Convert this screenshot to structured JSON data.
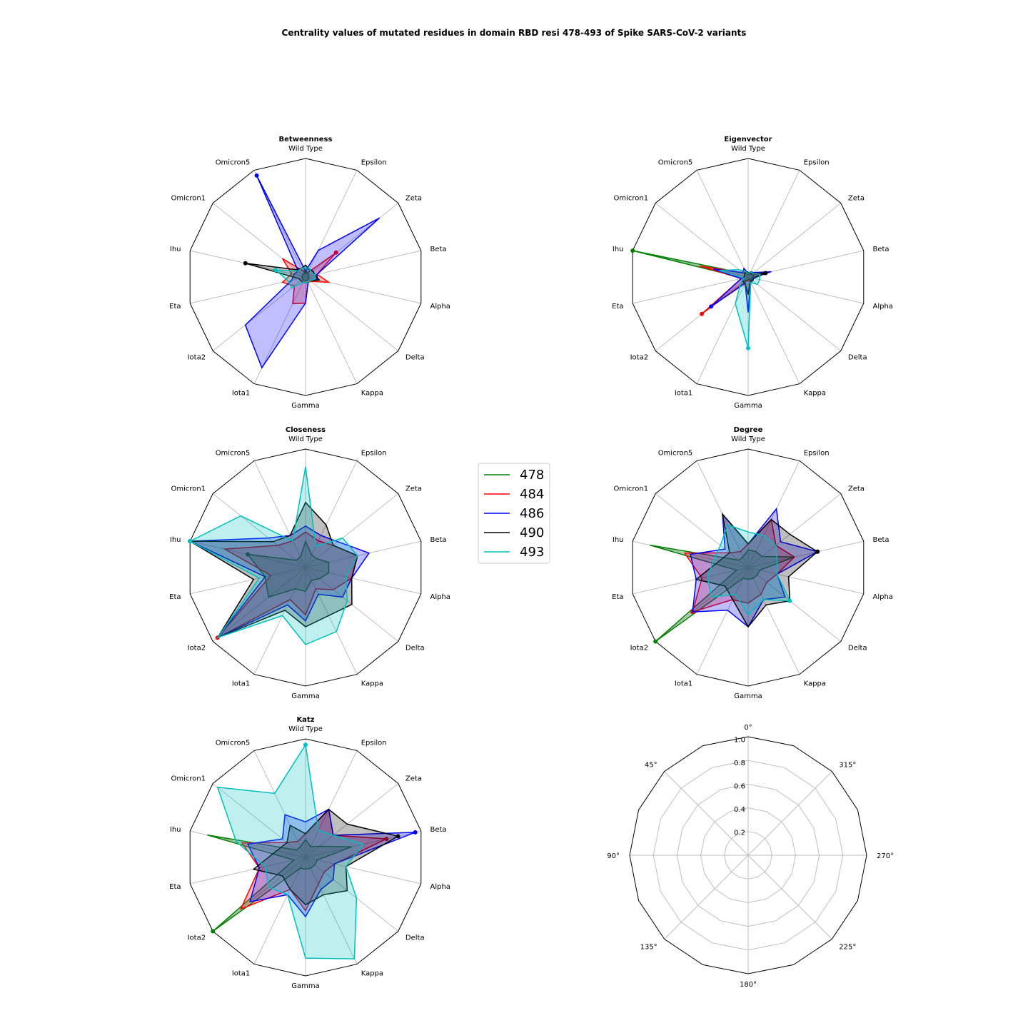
{
  "figure": {
    "title": "Centrality values of mutated residues in domain RBD resi 478-493 of Spike SARS-CoV-2 variants"
  },
  "axes": [
    "Wild Type",
    "Epsilon",
    "Zeta",
    "Beta",
    "Alpha",
    "Delta",
    "Kappa",
    "Gamma",
    "Iota1",
    "Iota2",
    "Eta",
    "Ihu",
    "Omicron1",
    "Omicron5"
  ],
  "colors": {
    "478": "#008000",
    "484": "#ff0000",
    "486": "#0000ff",
    "490": "#000000",
    "493": "#00bfbf"
  },
  "legend": {
    "entries": [
      {
        "label": "478",
        "color": "#008000"
      },
      {
        "label": "484",
        "color": "#ff0000"
      },
      {
        "label": "486",
        "color": "#0000ff"
      },
      {
        "label": "490",
        "color": "#000000"
      },
      {
        "label": "493",
        "color": "#00bfbf"
      }
    ]
  },
  "chart_data": [
    {
      "type": "radar",
      "title": "Betweenness",
      "rlim": [
        0,
        1
      ],
      "categories": [
        "Wild Type",
        "Epsilon",
        "Zeta",
        "Beta",
        "Alpha",
        "Delta",
        "Kappa",
        "Gamma",
        "Iota1",
        "Iota2",
        "Eta",
        "Ihu",
        "Omicron1",
        "Omicron5"
      ],
      "series": [
        {
          "name": "478",
          "values": [
            0.04,
            0.04,
            0.03,
            0.03,
            0.03,
            0.03,
            0.03,
            0.03,
            0.03,
            0.03,
            0.03,
            0.03,
            0.03,
            0.03
          ]
        },
        {
          "name": "484",
          "values": [
            0.05,
            0.04,
            0.33,
            0.1,
            0.2,
            0.06,
            0.05,
            0.22,
            0.25,
            0.12,
            0.2,
            0.12,
            0.25,
            0.06
          ]
        },
        {
          "name": "486",
          "values": [
            0.05,
            0.25,
            0.8,
            0.1,
            0.1,
            0.05,
            0.05,
            0.22,
            0.85,
            0.65,
            0.12,
            0.1,
            0.08,
            0.95
          ]
        },
        {
          "name": "490",
          "values": [
            0.1,
            0.07,
            0.08,
            0.08,
            0.12,
            0.05,
            0.05,
            0.05,
            0.05,
            0.05,
            0.06,
            0.52,
            0.1,
            0.08
          ]
        },
        {
          "name": "493",
          "values": [
            0.08,
            0.08,
            0.06,
            0.08,
            0.08,
            0.05,
            0.05,
            0.05,
            0.05,
            0.15,
            0.15,
            0.26,
            0.08,
            0.08
          ]
        }
      ]
    },
    {
      "type": "radar",
      "title": "Eigenvector",
      "rlim": [
        0,
        1
      ],
      "categories": [
        "Wild Type",
        "Epsilon",
        "Zeta",
        "Beta",
        "Alpha",
        "Delta",
        "Kappa",
        "Gamma",
        "Iota1",
        "Iota2",
        "Eta",
        "Ihu",
        "Omicron1",
        "Omicron5"
      ],
      "series": [
        {
          "name": "478",
          "values": [
            0.02,
            0.03,
            0.03,
            0.05,
            0.03,
            0.03,
            0.02,
            0.02,
            0.03,
            0.06,
            0.04,
            1.0,
            0.05,
            0.03
          ]
        },
        {
          "name": "484",
          "values": [
            0.03,
            0.04,
            0.04,
            0.1,
            0.04,
            0.04,
            0.03,
            0.03,
            0.04,
            0.5,
            0.06,
            0.42,
            0.06,
            0.05
          ]
        },
        {
          "name": "486",
          "values": [
            0.03,
            0.05,
            0.06,
            0.2,
            0.04,
            0.05,
            0.05,
            0.3,
            0.06,
            0.4,
            0.06,
            0.3,
            0.06,
            0.08
          ]
        },
        {
          "name": "490",
          "values": [
            0.04,
            0.04,
            0.05,
            0.15,
            0.05,
            0.05,
            0.04,
            0.15,
            0.06,
            0.06,
            0.05,
            0.03,
            0.04,
            0.05
          ]
        },
        {
          "name": "493",
          "values": [
            0.03,
            0.05,
            0.05,
            0.1,
            0.1,
            0.1,
            0.05,
            0.6,
            0.25,
            0.08,
            0.04,
            0.25,
            0.1,
            0.05
          ]
        }
      ]
    },
    {
      "type": "radar",
      "title": "Closeness",
      "rlim": [
        0,
        1
      ],
      "categories": [
        "Wild Type",
        "Epsilon",
        "Zeta",
        "Beta",
        "Alpha",
        "Delta",
        "Kappa",
        "Gamma",
        "Iota1",
        "Iota2",
        "Eta",
        "Ihu",
        "Omicron1",
        "Omicron5"
      ],
      "series": [
        {
          "name": "478",
          "values": [
            0.22,
            0.12,
            0.12,
            0.2,
            0.2,
            0.15,
            0.12,
            0.2,
            0.2,
            0.4,
            0.35,
            0.5,
            0.1,
            0.1
          ]
        },
        {
          "name": "484",
          "values": [
            0.3,
            0.25,
            0.3,
            0.45,
            0.4,
            0.3,
            0.2,
            0.4,
            0.3,
            0.95,
            0.3,
            0.7,
            0.3,
            0.25
          ]
        },
        {
          "name": "486",
          "values": [
            0.35,
            0.3,
            0.35,
            0.55,
            0.4,
            0.4,
            0.25,
            0.45,
            0.35,
            0.95,
            0.35,
            1.0,
            0.4,
            0.3
          ]
        },
        {
          "name": "490",
          "values": [
            0.55,
            0.4,
            0.3,
            0.45,
            0.4,
            0.5,
            0.45,
            0.5,
            0.4,
            0.95,
            0.45,
            1.0,
            0.35,
            0.3
          ]
        },
        {
          "name": "493",
          "values": [
            0.85,
            0.2,
            0.4,
            0.45,
            0.35,
            0.45,
            0.6,
            0.65,
            0.45,
            0.95,
            0.4,
            1.0,
            0.7,
            0.25
          ]
        }
      ]
    },
    {
      "type": "radar",
      "title": "Degree",
      "rlim": [
        0,
        1
      ],
      "categories": [
        "Wild Type",
        "Epsilon",
        "Zeta",
        "Beta",
        "Alpha",
        "Delta",
        "Kappa",
        "Gamma",
        "Iota1",
        "Iota2",
        "Eta",
        "Ihu",
        "Omicron1",
        "Omicron5"
      ],
      "series": [
        {
          "name": "478",
          "values": [
            0.15,
            0.15,
            0.15,
            0.4,
            0.1,
            0.1,
            0.1,
            0.1,
            0.1,
            1.0,
            0.1,
            0.85,
            0.1,
            0.1
          ]
        },
        {
          "name": "484",
          "values": [
            0.2,
            0.45,
            0.3,
            0.4,
            0.25,
            0.2,
            0.25,
            0.3,
            0.3,
            0.6,
            0.4,
            0.55,
            0.2,
            0.15
          ]
        },
        {
          "name": "486",
          "values": [
            0.2,
            0.55,
            0.35,
            0.6,
            0.25,
            0.4,
            0.3,
            0.5,
            0.4,
            0.6,
            0.45,
            0.5,
            0.25,
            0.5
          ]
        },
        {
          "name": "490",
          "values": [
            0.2,
            0.45,
            0.45,
            0.6,
            0.35,
            0.45,
            0.35,
            0.5,
            0.3,
            0.25,
            0.45,
            0.25,
            0.2,
            0.5
          ]
        },
        {
          "name": "493",
          "values": [
            0.3,
            0.3,
            0.3,
            0.25,
            0.25,
            0.45,
            0.3,
            0.4,
            0.25,
            0.4,
            0.35,
            0.3,
            0.3,
            0.4
          ]
        }
      ]
    },
    {
      "type": "radar",
      "title": "Katz",
      "rlim": [
        0,
        1
      ],
      "categories": [
        "Wild Type",
        "Epsilon",
        "Zeta",
        "Beta",
        "Alpha",
        "Delta",
        "Kappa",
        "Gamma",
        "Iota1",
        "Iota2",
        "Eta",
        "Ihu",
        "Omicron1",
        "Omicron5"
      ],
      "series": [
        {
          "name": "478",
          "values": [
            0.15,
            0.1,
            0.15,
            0.4,
            0.1,
            0.1,
            0.1,
            0.1,
            0.1,
            1.0,
            0.1,
            0.85,
            0.1,
            0.1
          ]
        },
        {
          "name": "484",
          "values": [
            0.2,
            0.45,
            0.3,
            0.7,
            0.25,
            0.2,
            0.25,
            0.45,
            0.3,
            0.7,
            0.4,
            0.55,
            0.2,
            0.15
          ]
        },
        {
          "name": "486",
          "values": [
            0.3,
            0.45,
            0.3,
            0.95,
            0.25,
            0.3,
            0.3,
            0.5,
            0.35,
            0.6,
            0.4,
            0.5,
            0.25,
            0.4
          ]
        },
        {
          "name": "490",
          "values": [
            0.2,
            0.45,
            0.45,
            0.8,
            0.35,
            0.45,
            0.35,
            0.4,
            0.3,
            0.25,
            0.45,
            0.25,
            0.2,
            0.3
          ]
        },
        {
          "name": "493",
          "values": [
            0.95,
            0.25,
            0.3,
            0.5,
            0.35,
            0.55,
            0.95,
            0.85,
            0.35,
            0.4,
            0.35,
            0.6,
            0.95,
            0.6
          ]
        }
      ]
    }
  ],
  "empty_polar": {
    "angle_labels": [
      "0°",
      "315°",
      "270°",
      "225°",
      "180°",
      "135°",
      "90°",
      "45°"
    ],
    "radial_ticks": [
      "0.2",
      "0.4",
      "0.6",
      "0.8",
      "1.0"
    ]
  }
}
